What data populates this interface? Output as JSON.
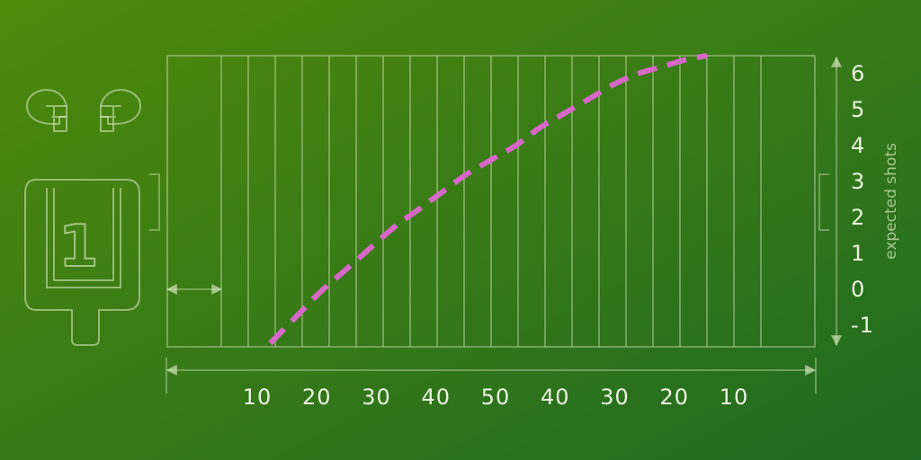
{
  "chart_data": {
    "type": "line",
    "ylabel": "expected shots",
    "xlabel": "",
    "x_tick_labels": [
      "10",
      "20",
      "30",
      "40",
      "50",
      "40",
      "30",
      "20",
      "10"
    ],
    "y_ticks": [
      -1,
      0,
      1,
      2,
      3,
      4,
      5,
      6
    ],
    "y_tick_labels": [
      "-1",
      "0",
      "1",
      "2",
      "3",
      "4",
      "5",
      "6"
    ],
    "ylim": [
      -1.6,
      6.5
    ],
    "xlim": [
      0,
      110
    ],
    "series": [
      {
        "color": "#d966c9",
        "style": "dashed",
        "x": [
          10,
          15,
          20,
          25,
          30,
          35,
          40,
          45,
          50,
          55,
          60,
          65,
          70,
          75,
          80,
          85,
          90,
          95,
          99
        ],
        "values": [
          -1.5,
          -0.8,
          -0.1,
          0.5,
          1.1,
          1.7,
          2.2,
          2.7,
          3.2,
          3.6,
          4.0,
          4.5,
          4.9,
          5.3,
          5.7,
          6.0,
          6.2,
          6.4,
          6.5
        ]
      }
    ],
    "grid": true
  },
  "decor": {
    "background_top": "#4f8a0c",
    "background_bottom": "#1f6a22",
    "line_color": "#cfe3b6",
    "helmet_icon": "football-helmet",
    "scorecard_digit": "1"
  }
}
